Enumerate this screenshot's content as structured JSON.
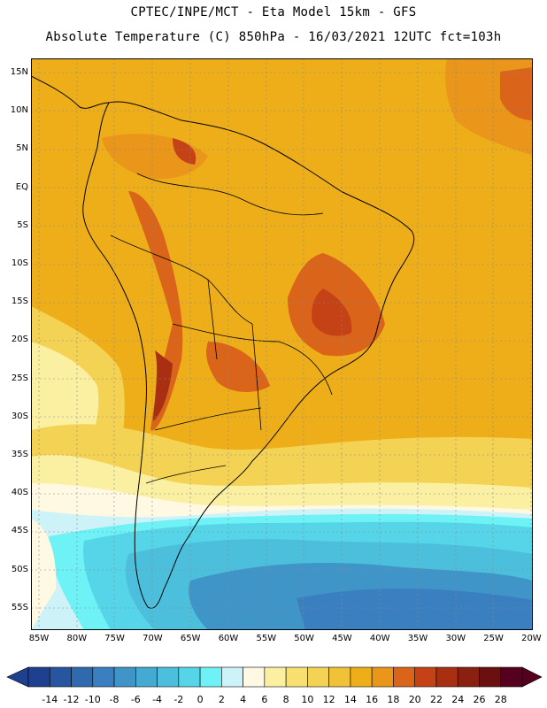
{
  "header": {
    "line1": "CPTEC/INPE/MCT -  Eta Model 15km - GFS",
    "line2": "Absolute Temperature (C) 850hPa - 16/03/2021 12UTC fct=103h"
  },
  "axes": {
    "lat_labels": [
      "15N",
      "10N",
      "5N",
      "EQ",
      "5S",
      "10S",
      "15S",
      "20S",
      "25S",
      "30S",
      "35S",
      "40S",
      "45S",
      "50S",
      "55S"
    ],
    "lon_labels": [
      "85W",
      "80W",
      "75W",
      "70W",
      "65W",
      "60W",
      "55W",
      "50W",
      "45W",
      "40W",
      "35W",
      "30W",
      "25W",
      "20W"
    ]
  },
  "colorbar": {
    "labels": [
      "-14",
      "-12",
      "-10",
      "-8",
      "-6",
      "-4",
      "-2",
      "0",
      "2",
      "4",
      "6",
      "8",
      "10",
      "12",
      "14",
      "16",
      "18",
      "20",
      "22",
      "24",
      "26",
      "28"
    ],
    "colors": [
      "#1f3f8f",
      "#27559f",
      "#2f6aaf",
      "#3a7fbf",
      "#3f95c8",
      "#45aad2",
      "#4cbfdc",
      "#57d5e8",
      "#6ff2f5",
      "#cdf3f8",
      "#fff8e3",
      "#fbf0a2",
      "#f8e070",
      "#f4d253",
      "#f1c138",
      "#eeae1a",
      "#e9961a",
      "#d9641a",
      "#c44216",
      "#a82f12",
      "#8a2010",
      "#6a1010",
      "#55001e"
    ]
  },
  "legend_colors": {
    "ocean_warm": "#f0ae1a",
    "land_base": "#eeae1a",
    "hot": "#c44216",
    "cold": "#3f95c8"
  }
}
